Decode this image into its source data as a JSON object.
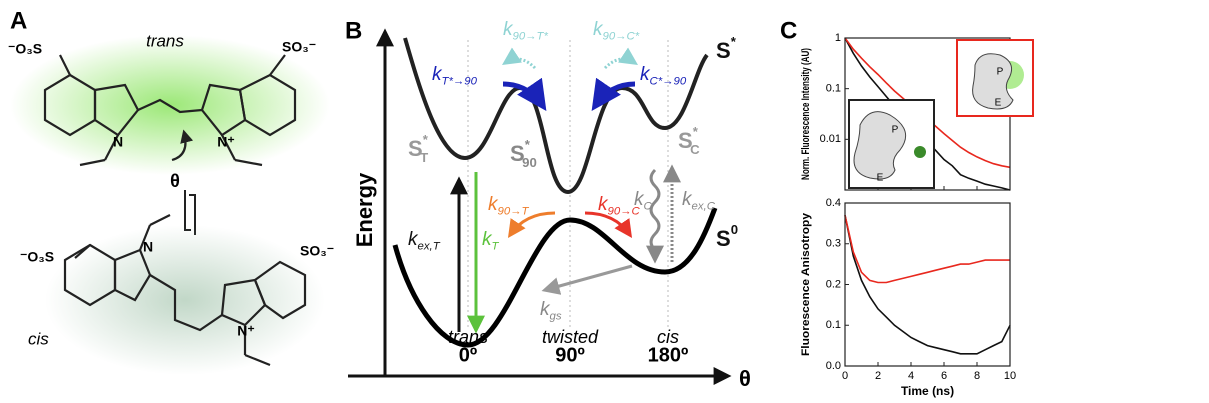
{
  "panel_a": {
    "label": "A",
    "trans": {
      "name": "trans",
      "left_group": "⁻O₃S",
      "right_group": "SO₃⁻",
      "n_left": "N",
      "n_right": "N⁺",
      "angle": "θ"
    },
    "cis": {
      "name": "cis",
      "left_group": "⁻O₃S",
      "right_group": "SO₃⁻",
      "n_left": "N",
      "n_right": "N⁺"
    }
  },
  "panel_b": {
    "label": "B",
    "y_axis": "Energy",
    "x_axis": "θ",
    "x_ticks": [
      "0º",
      "90º",
      "180º"
    ],
    "conformers": [
      "trans",
      "twisted",
      "cis"
    ],
    "states": [
      {
        "base": "S",
        "sup": "*"
      },
      {
        "base": "S",
        "sup": "0"
      },
      {
        "base": "S",
        "sup": "*",
        "sub": "T"
      },
      {
        "base": "S",
        "sup": "*",
        "sub": "90"
      },
      {
        "base": "S",
        "sup": "*",
        "sub": "C"
      }
    ],
    "rates": [
      {
        "base": "k",
        "sub": "90→T*",
        "color": "#8fd3d3"
      },
      {
        "base": "k",
        "sub": "90→C*",
        "color": "#8fd3d3"
      },
      {
        "base": "k",
        "sub": "T*→90",
        "color": "#1a23b8"
      },
      {
        "base": "k",
        "sub": "C*→90",
        "color": "#1a23b8"
      },
      {
        "base": "k",
        "sub": "ex,T",
        "color": "#111111"
      },
      {
        "base": "k",
        "sub": "T",
        "color": "#5cc23c"
      },
      {
        "base": "k",
        "sub": "90→T",
        "color": "#ee7d2c"
      },
      {
        "base": "k",
        "sub": "90→C",
        "color": "#e8342a"
      },
      {
        "base": "k",
        "sub": "C",
        "color": "#888888"
      },
      {
        "base": "k",
        "sub": "ex,C",
        "color": "#888888"
      },
      {
        "base": "k",
        "sub": "gs",
        "color": "#888888"
      }
    ]
  },
  "panel_c": {
    "label": "C",
    "inset_protein": "P",
    "inset_end": "E",
    "inset_protein_2": "P",
    "inset_end_2": "E"
  },
  "chart_data": [
    {
      "type": "line",
      "ylabel": "Norm. Fluorescence Intensity (AU)",
      "log_y": true,
      "xlim": [
        0,
        10
      ],
      "xticks": [
        0,
        2,
        4,
        6,
        8,
        10
      ],
      "ylim": [
        0.001,
        1
      ],
      "yticks": [
        1,
        0.1,
        0.01
      ],
      "x": [
        0,
        0.5,
        1,
        1.5,
        2,
        2.5,
        3,
        3.5,
        4,
        4.5,
        5,
        5.5,
        6,
        6.5,
        7,
        7.5,
        8,
        8.5,
        9,
        9.5,
        10
      ],
      "series": [
        {
          "color": "#111111",
          "values": [
            1,
            0.5,
            0.28,
            0.17,
            0.11,
            0.07,
            0.045,
            0.03,
            0.019,
            0.013,
            0.009,
            0.006,
            0.004,
            0.003,
            0.002,
            0.0017,
            0.0015,
            0.0013,
            0.0012,
            0.0011,
            0.001
          ]
        },
        {
          "color": "#e8281e",
          "values": [
            1,
            0.6,
            0.4,
            0.27,
            0.19,
            0.13,
            0.09,
            0.065,
            0.047,
            0.034,
            0.025,
            0.018,
            0.013,
            0.0095,
            0.007,
            0.0055,
            0.0045,
            0.0038,
            0.0033,
            0.003,
            0.0028
          ]
        }
      ]
    },
    {
      "type": "line",
      "ylabel": "Fluorescence Anisotropy",
      "xlabel": "Time (ns)",
      "log_y": false,
      "xlim": [
        0,
        10
      ],
      "xticks": [
        0,
        2,
        4,
        6,
        8,
        10
      ],
      "ylim": [
        0,
        0.4
      ],
      "yticks": [
        {
          "value": 0,
          "label": "0.0"
        },
        0.1,
        0.2,
        0.3,
        0.4
      ],
      "x": [
        0,
        0.5,
        1,
        1.5,
        2,
        2.5,
        3,
        3.5,
        4,
        4.5,
        5,
        5.5,
        6,
        6.5,
        7,
        7.5,
        8,
        8.5,
        9,
        9.5,
        10
      ],
      "series": [
        {
          "color": "#111111",
          "values": [
            0.37,
            0.27,
            0.21,
            0.17,
            0.14,
            0.12,
            0.1,
            0.085,
            0.07,
            0.06,
            0.05,
            0.045,
            0.04,
            0.035,
            0.03,
            0.03,
            0.03,
            0.04,
            0.05,
            0.06,
            0.1
          ]
        },
        {
          "color": "#e8281e",
          "values": [
            0.37,
            0.28,
            0.23,
            0.21,
            0.205,
            0.205,
            0.21,
            0.215,
            0.22,
            0.225,
            0.23,
            0.235,
            0.24,
            0.245,
            0.25,
            0.25,
            0.255,
            0.26,
            0.26,
            0.26,
            0.26
          ]
        }
      ]
    }
  ]
}
